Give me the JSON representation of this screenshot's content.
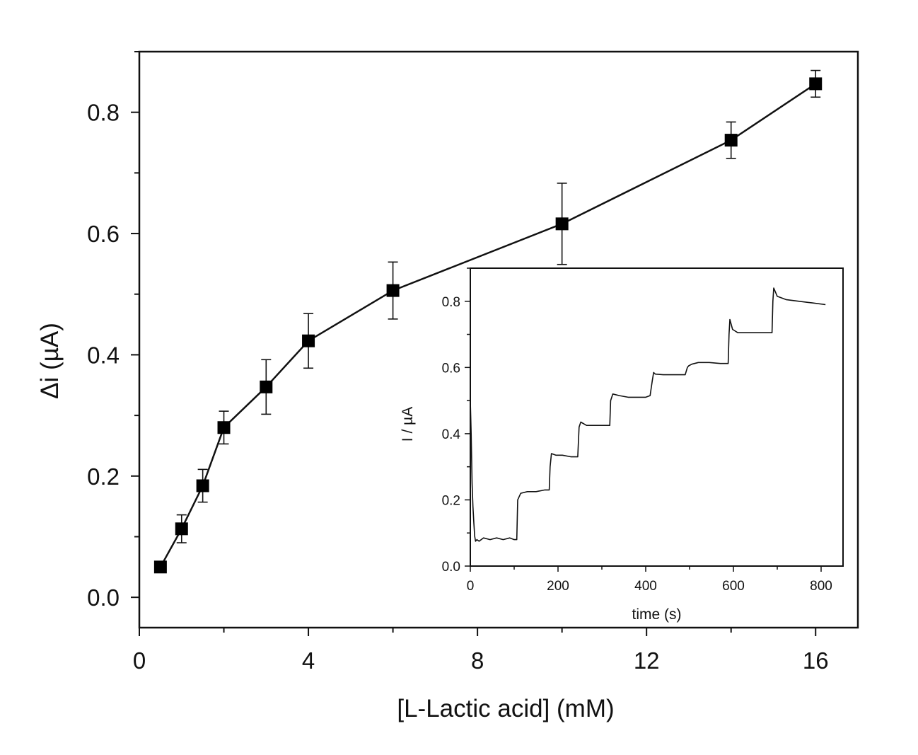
{
  "chart_data": [
    {
      "type": "line",
      "title": "",
      "xlabel": "[L-Lactic acid] (mM)",
      "ylabel": "Δi (µA)",
      "xlim": [
        0,
        17
      ],
      "ylim": [
        -0.05,
        0.9
      ],
      "xticks": [
        "0",
        "4",
        "8",
        "12",
        "16"
      ],
      "yticks": [
        "0.0",
        "0.2",
        "0.4",
        "0.6",
        "0.8"
      ],
      "grid": false,
      "marker": "square",
      "series": [
        {
          "x": [
            0.5,
            1,
            1.5,
            2,
            3,
            4,
            6,
            10,
            14,
            16
          ],
          "y": [
            0.05,
            0.113,
            0.184,
            0.28,
            0.347,
            0.423,
            0.506,
            0.616,
            0.754,
            0.847
          ],
          "error": [
            0.005,
            0.023,
            0.027,
            0.027,
            0.045,
            0.045,
            0.047,
            0.067,
            0.03,
            0.022
          ]
        }
      ]
    },
    {
      "type": "line",
      "title": "",
      "xlabel": "time (s)",
      "ylabel": "I / µA",
      "xlim": [
        0,
        850
      ],
      "ylim": [
        0,
        0.9
      ],
      "xticks": [
        "0",
        "200",
        "400",
        "600",
        "800"
      ],
      "yticks": [
        "0.0",
        "0.2",
        "0.4",
        "0.6",
        "0.8"
      ],
      "grid": false,
      "series": [
        {
          "x": [
            0,
            2,
            4,
            6,
            8,
            10,
            12,
            15,
            20,
            30,
            45,
            60,
            75,
            90,
            100,
            106,
            108,
            115,
            130,
            150,
            170,
            180,
            182,
            185,
            195,
            210,
            230,
            245,
            248,
            252,
            265,
            285,
            305,
            318,
            320,
            325,
            340,
            360,
            380,
            400,
            410,
            415,
            418,
            422,
            440,
            460,
            480,
            490,
            495,
            498,
            505,
            520,
            545,
            570,
            588,
            590,
            592,
            598,
            610,
            640,
            670,
            688,
            690,
            692,
            700,
            720,
            750,
            780,
            810
          ],
          "y": [
            0.5,
            0.4,
            0.25,
            0.18,
            0.13,
            0.09,
            0.075,
            0.08,
            0.075,
            0.085,
            0.08,
            0.085,
            0.08,
            0.085,
            0.08,
            0.08,
            0.2,
            0.22,
            0.225,
            0.225,
            0.23,
            0.23,
            0.3,
            0.34,
            0.335,
            0.335,
            0.33,
            0.33,
            0.42,
            0.435,
            0.425,
            0.425,
            0.425,
            0.425,
            0.5,
            0.52,
            0.515,
            0.51,
            0.51,
            0.51,
            0.515,
            0.56,
            0.585,
            0.58,
            0.578,
            0.578,
            0.578,
            0.578,
            0.6,
            0.605,
            0.61,
            0.615,
            0.615,
            0.612,
            0.612,
            0.7,
            0.745,
            0.715,
            0.705,
            0.705,
            0.705,
            0.705,
            0.8,
            0.84,
            0.815,
            0.805,
            0.8,
            0.795,
            0.79
          ]
        }
      ]
    }
  ]
}
